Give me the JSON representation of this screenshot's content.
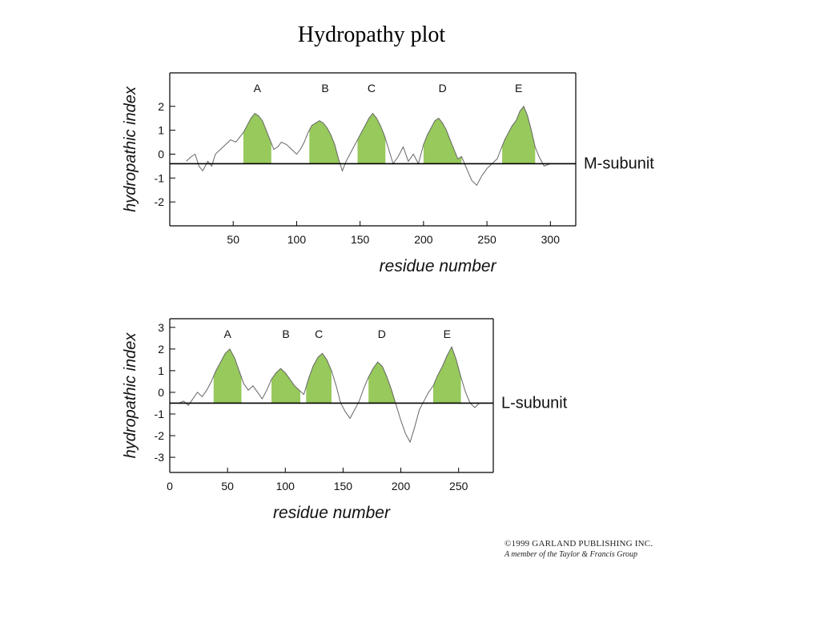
{
  "page": {
    "title": "Hydropathy plot",
    "copyright_line1": "©1999 GARLAND PUBLISHING INC.",
    "copyright_line2": "A member of the Taylor & Francis Group"
  },
  "colors": {
    "hydrophobic_fill": "#8cc34a",
    "trace": "#666666",
    "axis": "#000000"
  },
  "chart_data": [
    {
      "type": "line",
      "id": "m",
      "subunit_label": "M-subunit",
      "xlabel": "residue number",
      "ylabel": "hydropathic index",
      "xlim": [
        0,
        320
      ],
      "ylim": [
        -3,
        3.4
      ],
      "baseline_y": -0.4,
      "xticks": [
        50,
        100,
        150,
        200,
        250,
        300
      ],
      "yticks": [
        2,
        1,
        0,
        -1,
        -2
      ],
      "grid": false,
      "segments": [
        {
          "label": "A",
          "x_start": 58,
          "x_end": 80
        },
        {
          "label": "B",
          "x_start": 110,
          "x_end": 135
        },
        {
          "label": "C",
          "x_start": 148,
          "x_end": 170
        },
        {
          "label": "D",
          "x_start": 200,
          "x_end": 230
        },
        {
          "label": "E",
          "x_start": 262,
          "x_end": 288
        }
      ],
      "x": [
        13,
        17,
        20,
        23,
        26,
        30,
        33,
        36,
        40,
        44,
        48,
        52,
        55,
        58,
        61,
        64,
        67,
        70,
        73,
        76,
        79,
        82,
        85,
        88,
        92,
        96,
        100,
        103,
        106,
        109,
        112,
        115,
        118,
        121,
        124,
        127,
        130,
        133,
        136,
        139,
        142,
        145,
        148,
        151,
        154,
        157,
        160,
        163,
        166,
        169,
        172,
        176,
        180,
        184,
        188,
        192,
        196,
        200,
        203,
        206,
        209,
        212,
        215,
        218,
        221,
        224,
        227,
        230,
        234,
        238,
        242,
        246,
        250,
        254,
        258,
        261,
        264,
        267,
        270,
        273,
        276,
        279,
        282,
        285,
        288,
        291,
        295,
        300
      ],
      "y": [
        -0.3,
        -0.1,
        0.0,
        -0.5,
        -0.7,
        -0.3,
        -0.5,
        0.0,
        0.2,
        0.4,
        0.6,
        0.5,
        0.7,
        0.9,
        1.2,
        1.5,
        1.7,
        1.6,
        1.4,
        1.0,
        0.6,
        0.2,
        0.3,
        0.5,
        0.4,
        0.2,
        0.0,
        0.2,
        0.5,
        0.9,
        1.2,
        1.3,
        1.4,
        1.3,
        1.1,
        0.8,
        0.4,
        -0.2,
        -0.7,
        -0.3,
        0.0,
        0.3,
        0.6,
        0.9,
        1.2,
        1.5,
        1.7,
        1.5,
        1.2,
        0.8,
        0.3,
        -0.4,
        -0.1,
        0.3,
        -0.3,
        0.0,
        -0.4,
        0.4,
        0.8,
        1.1,
        1.4,
        1.5,
        1.3,
        1.0,
        0.6,
        0.2,
        -0.2,
        -0.1,
        -0.6,
        -1.1,
        -1.3,
        -0.9,
        -0.6,
        -0.4,
        -0.2,
        0.2,
        0.6,
        0.9,
        1.2,
        1.4,
        1.8,
        2.0,
        1.6,
        1.0,
        0.3,
        -0.1,
        -0.5,
        -0.4
      ]
    },
    {
      "type": "line",
      "id": "l",
      "subunit_label": "L-subunit",
      "xlabel": "residue number",
      "ylabel": "hydropathic index",
      "xlim": [
        0,
        280
      ],
      "ylim": [
        -3.7,
        3.4
      ],
      "baseline_y": -0.5,
      "xticks": [
        0,
        50,
        100,
        150,
        200,
        250
      ],
      "yticks": [
        3,
        2,
        1,
        0,
        -1,
        -2,
        -3
      ],
      "grid": false,
      "segments": [
        {
          "label": "A",
          "x_start": 38,
          "x_end": 62
        },
        {
          "label": "B",
          "x_start": 88,
          "x_end": 113
        },
        {
          "label": "C",
          "x_start": 118,
          "x_end": 140
        },
        {
          "label": "D",
          "x_start": 172,
          "x_end": 195
        },
        {
          "label": "E",
          "x_start": 228,
          "x_end": 252
        }
      ],
      "x": [
        8,
        12,
        16,
        20,
        24,
        28,
        32,
        36,
        40,
        44,
        48,
        52,
        56,
        60,
        64,
        68,
        72,
        76,
        80,
        84,
        88,
        92,
        96,
        100,
        104,
        108,
        112,
        116,
        120,
        124,
        128,
        132,
        136,
        140,
        144,
        148,
        152,
        156,
        160,
        164,
        168,
        172,
        176,
        180,
        184,
        188,
        192,
        196,
        200,
        204,
        208,
        212,
        216,
        220,
        224,
        228,
        232,
        236,
        240,
        244,
        248,
        252,
        256,
        260,
        264,
        268
      ],
      "y": [
        -0.5,
        -0.4,
        -0.6,
        -0.3,
        0.0,
        -0.2,
        0.1,
        0.5,
        1.0,
        1.4,
        1.8,
        2.0,
        1.6,
        1.0,
        0.4,
        0.1,
        0.3,
        0.0,
        -0.3,
        0.1,
        0.6,
        0.9,
        1.1,
        0.9,
        0.6,
        0.3,
        0.1,
        -0.1,
        0.6,
        1.2,
        1.6,
        1.8,
        1.5,
        1.0,
        0.3,
        -0.5,
        -0.9,
        -1.2,
        -0.8,
        -0.4,
        0.2,
        0.7,
        1.1,
        1.4,
        1.2,
        0.7,
        0.1,
        -0.6,
        -1.3,
        -1.9,
        -2.3,
        -1.6,
        -0.8,
        -0.4,
        0.0,
        0.3,
        0.8,
        1.2,
        1.7,
        2.1,
        1.5,
        0.7,
        0.0,
        -0.5,
        -0.7,
        -0.5
      ]
    }
  ]
}
